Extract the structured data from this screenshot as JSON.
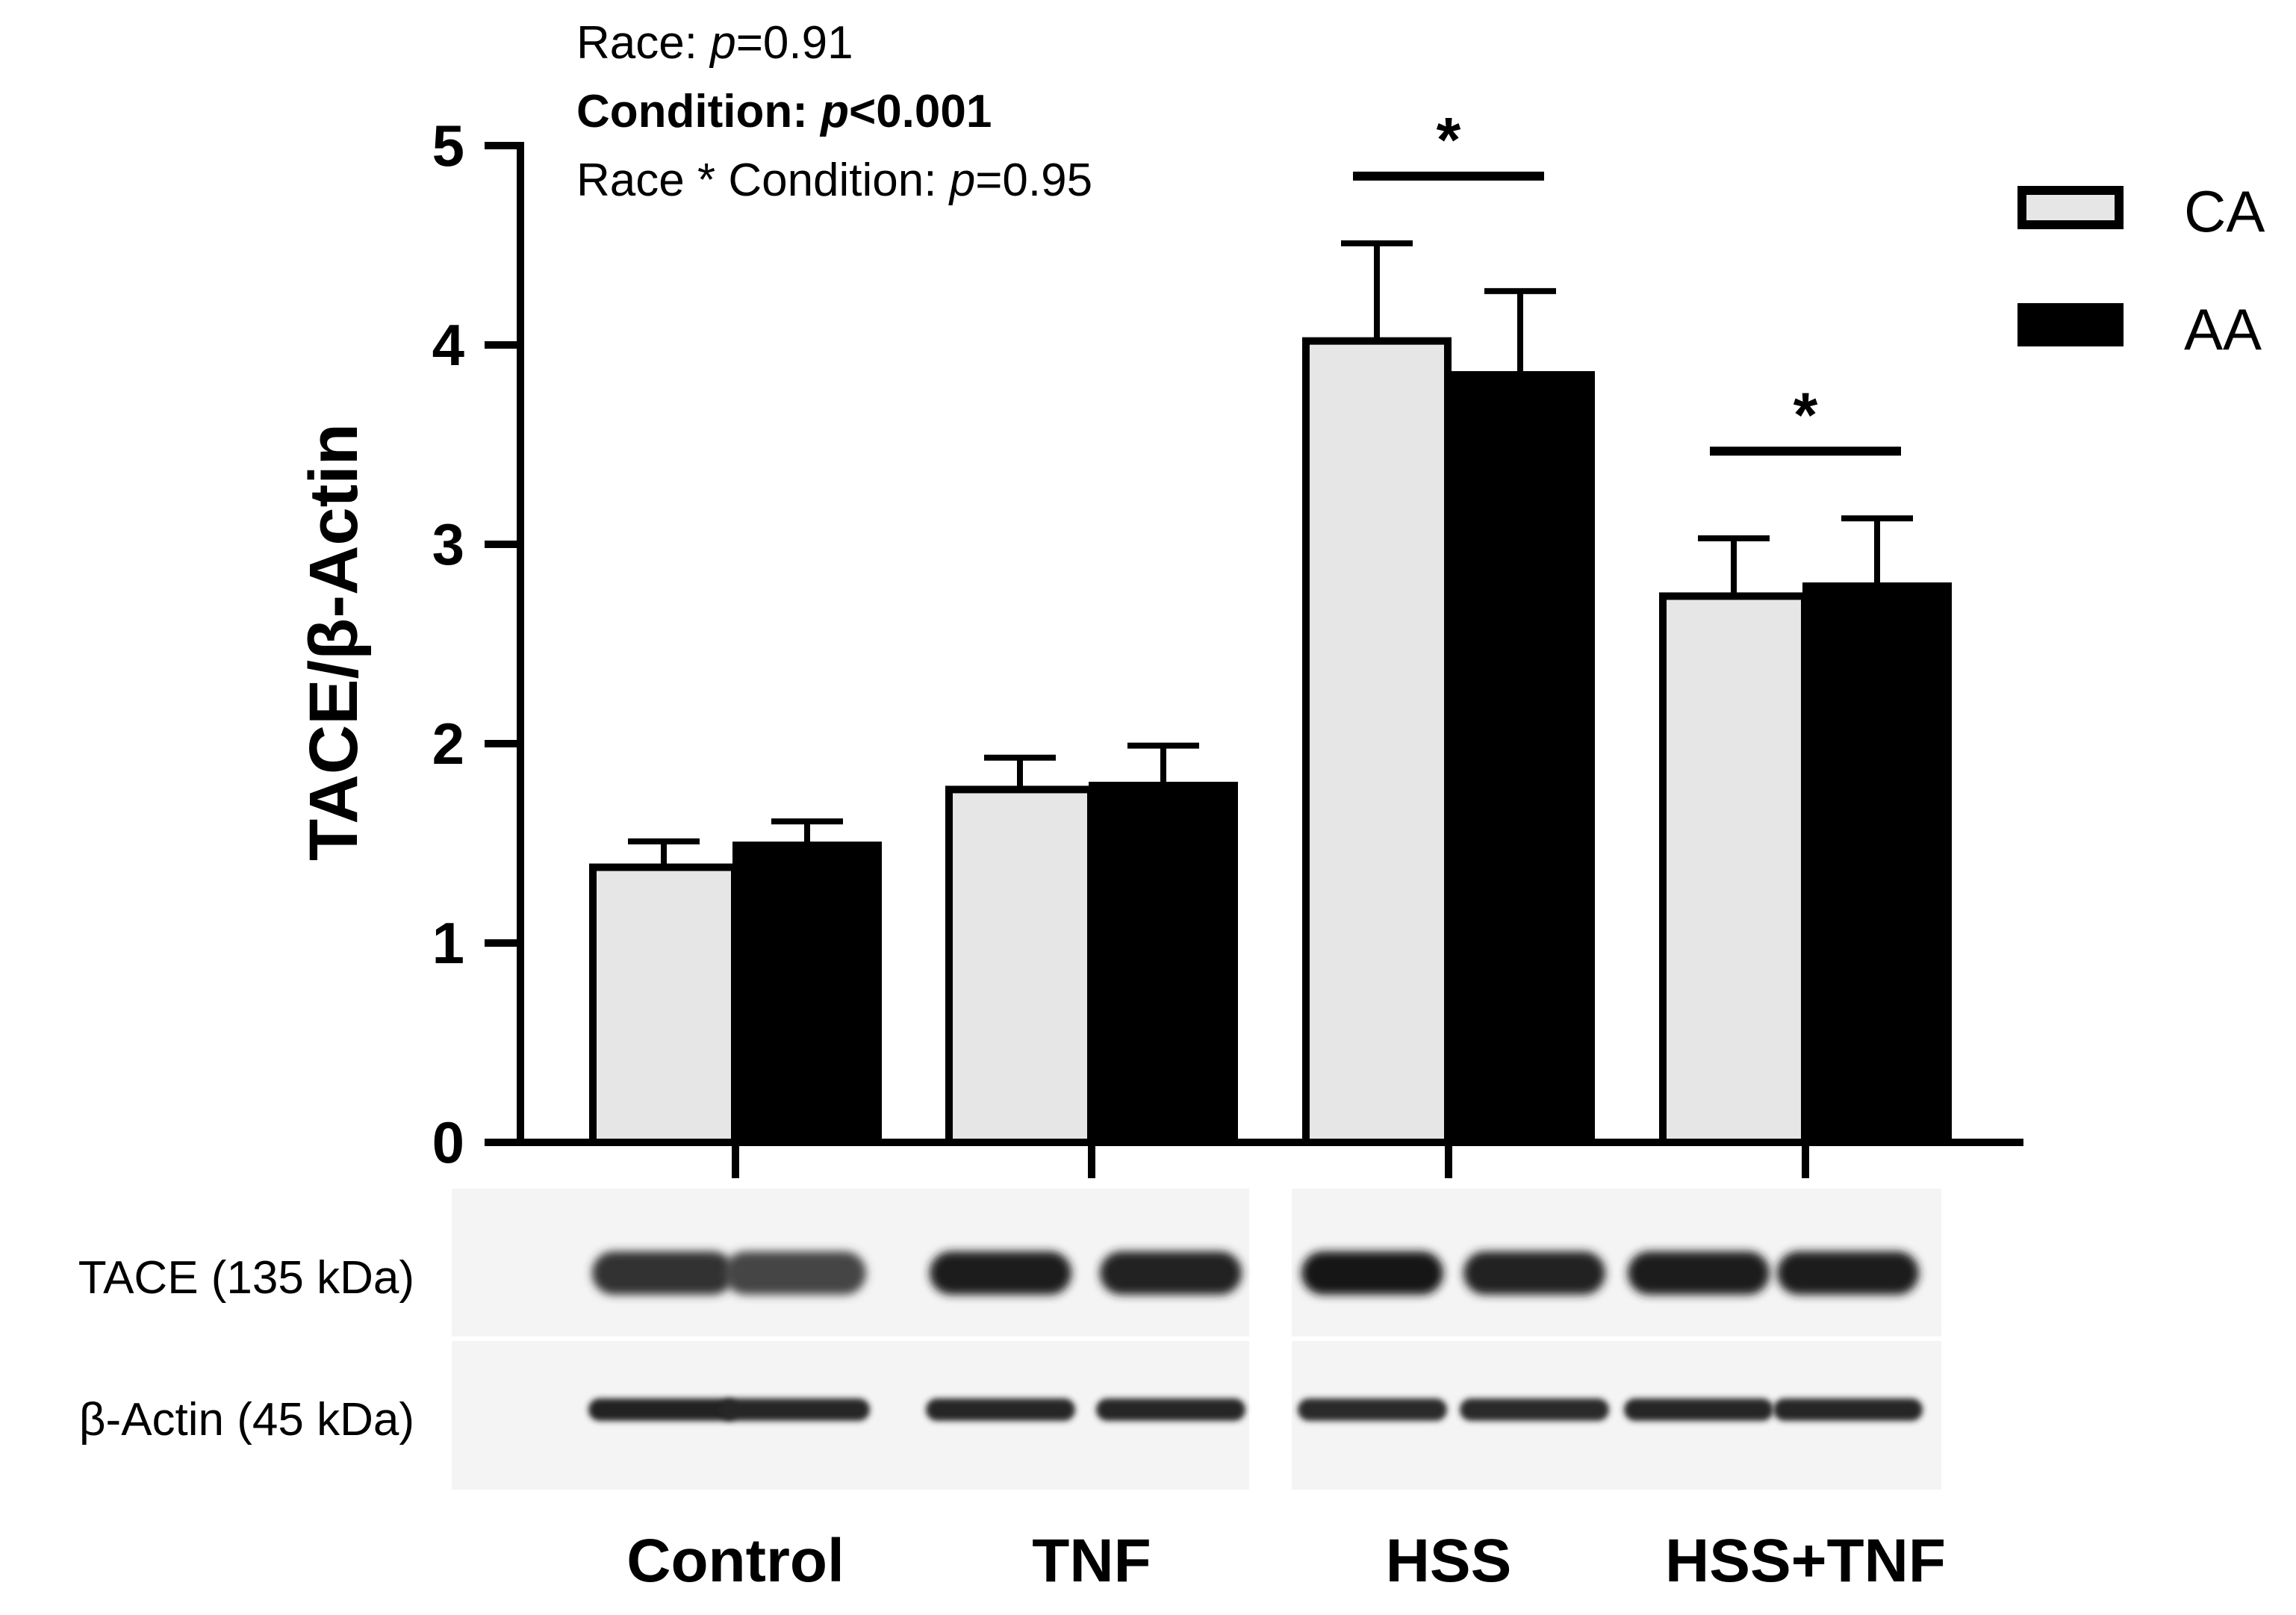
{
  "chart_data": {
    "type": "bar",
    "categories": [
      "Control",
      "TNF",
      "HSS",
      "HSS+TNF"
    ],
    "series": [
      {
        "name": "CA",
        "color": "#e6e6e6",
        "values": [
          1.38,
          1.77,
          4.02,
          2.74
        ],
        "errors": [
          0.13,
          0.16,
          0.49,
          0.29
        ]
      },
      {
        "name": "AA",
        "color": "#000000",
        "values": [
          1.49,
          1.79,
          3.85,
          2.79
        ],
        "errors": [
          0.12,
          0.2,
          0.42,
          0.34
        ]
      }
    ],
    "ylabel": "TACE/β-Actin",
    "ylim": [
      0,
      5
    ],
    "yticks": [
      "0",
      "1",
      "2",
      "3",
      "4",
      "5"
    ],
    "legend_position": "top-right",
    "significance": [
      {
        "category": "HSS",
        "label": "*"
      },
      {
        "category": "HSS+TNF",
        "label": "*"
      }
    ],
    "stats": [
      {
        "prefix": "Race: ",
        "p": "p",
        "value": "=0.91",
        "bold": false
      },
      {
        "prefix": "Condition: ",
        "p": "p",
        "value": "<0.001",
        "bold": true
      },
      {
        "prefix": "Race * Condition: ",
        "p": "p",
        "value": "=0.95",
        "bold": false
      }
    ]
  },
  "blot": {
    "rows": [
      {
        "label": "TACE (135 kDa)",
        "intensities": [
          0.75,
          0.6,
          0.95,
          0.9,
          1.0,
          0.9,
          0.95,
          0.95
        ]
      },
      {
        "label": "β-Actin (45 kDa)",
        "intensities": [
          0.9,
          0.85,
          0.85,
          0.85,
          0.8,
          0.8,
          0.85,
          0.85
        ]
      }
    ]
  }
}
